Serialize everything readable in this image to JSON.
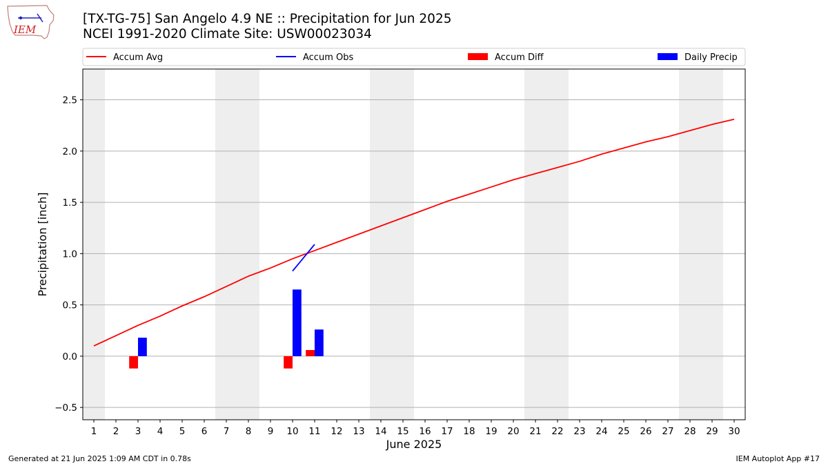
{
  "header": {
    "title_line1": "[TX-TG-75] San Angelo 4.9 NE :: Precipitation for Jun 2025",
    "title_line2": "NCEI 1991-2020 Climate Site: USW00023034"
  },
  "logo": {
    "text": "IEM"
  },
  "footer": {
    "left": "Generated at 21 Jun 2025 1:09 AM CDT in 0.78s",
    "right": "IEM Autoplot App #17"
  },
  "chart_data": {
    "type": "bar",
    "xlabel": "June 2025",
    "ylabel": "Precipitation [inch]",
    "xlim": [
      0.5,
      30.5
    ],
    "ylim": [
      -0.62,
      2.8
    ],
    "x_ticks": [
      1,
      2,
      3,
      4,
      5,
      6,
      7,
      8,
      9,
      10,
      11,
      12,
      13,
      14,
      15,
      16,
      17,
      18,
      19,
      20,
      21,
      22,
      23,
      24,
      25,
      26,
      27,
      28,
      29,
      30
    ],
    "y_ticks": [
      -0.5,
      0.0,
      0.5,
      1.0,
      1.5,
      2.0,
      2.5
    ],
    "y_tick_labels": [
      "−0.5",
      "0.0",
      "0.5",
      "1.0",
      "1.5",
      "2.0",
      "2.5"
    ],
    "grid": "horizontal",
    "weekend_shading": [
      [
        0.5,
        1.5
      ],
      [
        6.5,
        8.5
      ],
      [
        13.5,
        15.5
      ],
      [
        20.5,
        22.5
      ],
      [
        27.5,
        29.5
      ]
    ],
    "legend_placement": "top, above plot",
    "series": [
      {
        "name": "Accum Avg",
        "kind": "line",
        "color": "#ff0000",
        "x": [
          1,
          2,
          3,
          4,
          5,
          6,
          7,
          8,
          9,
          10,
          11,
          12,
          13,
          14,
          15,
          16,
          17,
          18,
          19,
          20,
          21,
          22,
          23,
          24,
          25,
          26,
          27,
          28,
          29,
          30
        ],
        "values": [
          0.1,
          0.2,
          0.3,
          0.39,
          0.49,
          0.58,
          0.68,
          0.78,
          0.86,
          0.95,
          1.03,
          1.11,
          1.19,
          1.27,
          1.35,
          1.43,
          1.51,
          1.58,
          1.65,
          1.72,
          1.78,
          1.84,
          1.9,
          1.97,
          2.03,
          2.09,
          2.14,
          2.2,
          2.26,
          2.31
        ]
      },
      {
        "name": "Accum Obs",
        "kind": "line",
        "color": "#0000ff",
        "x": [
          10,
          11
        ],
        "values": [
          0.83,
          1.09
        ]
      },
      {
        "name": "Accum Diff",
        "kind": "bar",
        "color": "#ff0000",
        "x": [
          3,
          10,
          11
        ],
        "values": [
          -0.12,
          -0.12,
          0.06
        ]
      },
      {
        "name": "Daily Precip",
        "kind": "bar",
        "color": "#0000ff",
        "x": [
          3,
          10,
          11
        ],
        "values": [
          0.18,
          0.65,
          0.26
        ]
      }
    ]
  }
}
